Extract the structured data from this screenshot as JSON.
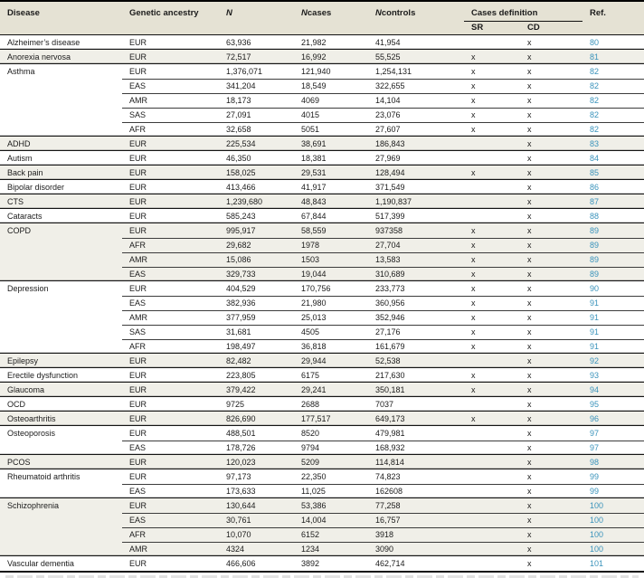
{
  "colors": {
    "header_bg": "#e5e2d4",
    "shaded_row_bg": "#f0efe8",
    "ref_link": "#3a93bb",
    "rule_dark": "#141414"
  },
  "header": {
    "disease": "Disease",
    "ancestry": "Genetic ancestry",
    "n_italic": "N",
    "ncases_prefix": "N",
    "ncases_suffix": "cases",
    "ncontrols_prefix": "N",
    "ncontrols_suffix": "controls",
    "cases_definition": "Cases definition",
    "sr": "SR",
    "cd": "CD",
    "ref": "Ref."
  },
  "groups": [
    {
      "disease": "Alzheimer’s disease",
      "shaded": false,
      "rows": [
        {
          "ancestry": "EUR",
          "n": "63,936",
          "ncases": "21,982",
          "ncontrols": "41,954",
          "sr": "",
          "cd": "x",
          "ref": "80"
        }
      ]
    },
    {
      "disease": "Anorexia nervosa",
      "shaded": true,
      "rows": [
        {
          "ancestry": "EUR",
          "n": "72,517",
          "ncases": "16,992",
          "ncontrols": "55,525",
          "sr": "x",
          "cd": "x",
          "ref": "81"
        }
      ]
    },
    {
      "disease": "Asthma",
      "shaded": false,
      "rows": [
        {
          "ancestry": "EUR",
          "n": "1,376,071",
          "ncases": "121,940",
          "ncontrols": "1,254,131",
          "sr": "x",
          "cd": "x",
          "ref": "82"
        },
        {
          "ancestry": "EAS",
          "n": "341,204",
          "ncases": "18,549",
          "ncontrols": "322,655",
          "sr": "x",
          "cd": "x",
          "ref": "82"
        },
        {
          "ancestry": "AMR",
          "n": "18,173",
          "ncases": "4069",
          "ncontrols": "14,104",
          "sr": "x",
          "cd": "x",
          "ref": "82"
        },
        {
          "ancestry": "SAS",
          "n": "27,091",
          "ncases": "4015",
          "ncontrols": "23,076",
          "sr": "x",
          "cd": "x",
          "ref": "82"
        },
        {
          "ancestry": "AFR",
          "n": "32,658",
          "ncases": "5051",
          "ncontrols": "27,607",
          "sr": "x",
          "cd": "x",
          "ref": "82"
        }
      ]
    },
    {
      "disease": "ADHD",
      "shaded": true,
      "rows": [
        {
          "ancestry": "EUR",
          "n": "225,534",
          "ncases": "38,691",
          "ncontrols": "186,843",
          "sr": "",
          "cd": "x",
          "ref": "83"
        }
      ]
    },
    {
      "disease": "Autism",
      "shaded": false,
      "rows": [
        {
          "ancestry": "EUR",
          "n": "46,350",
          "ncases": "18,381",
          "ncontrols": "27,969",
          "sr": "",
          "cd": "x",
          "ref": "84"
        }
      ]
    },
    {
      "disease": "Back pain",
      "shaded": true,
      "rows": [
        {
          "ancestry": "EUR",
          "n": "158,025",
          "ncases": "29,531",
          "ncontrols": "128,494",
          "sr": "x",
          "cd": "x",
          "ref": "85"
        }
      ]
    },
    {
      "disease": "Bipolar disorder",
      "shaded": false,
      "rows": [
        {
          "ancestry": "EUR",
          "n": "413,466",
          "ncases": "41,917",
          "ncontrols": "371,549",
          "sr": "",
          "cd": "x",
          "ref": "86"
        }
      ]
    },
    {
      "disease": "CTS",
      "shaded": true,
      "rows": [
        {
          "ancestry": "EUR",
          "n": "1,239,680",
          "ncases": "48,843",
          "ncontrols": "1,190,837",
          "sr": "",
          "cd": "x",
          "ref": "87"
        }
      ]
    },
    {
      "disease": "Cataracts",
      "shaded": false,
      "rows": [
        {
          "ancestry": "EUR",
          "n": "585,243",
          "ncases": "67,844",
          "ncontrols": "517,399",
          "sr": "",
          "cd": "x",
          "ref": "88"
        }
      ]
    },
    {
      "disease": "COPD",
      "shaded": true,
      "rows": [
        {
          "ancestry": "EUR",
          "n": "995,917",
          "ncases": "58,559",
          "ncontrols": "937358",
          "sr": "x",
          "cd": "x",
          "ref": "89"
        },
        {
          "ancestry": "AFR",
          "n": "29,682",
          "ncases": "1978",
          "ncontrols": "27,704",
          "sr": "x",
          "cd": "x",
          "ref": "89"
        },
        {
          "ancestry": "AMR",
          "n": "15,086",
          "ncases": "1503",
          "ncontrols": "13,583",
          "sr": "x",
          "cd": "x",
          "ref": "89"
        },
        {
          "ancestry": "EAS",
          "n": "329,733",
          "ncases": "19,044",
          "ncontrols": "310,689",
          "sr": "x",
          "cd": "x",
          "ref": "89"
        }
      ]
    },
    {
      "disease": "Depression",
      "shaded": false,
      "rows": [
        {
          "ancestry": "EUR",
          "n": "404,529",
          "ncases": "170,756",
          "ncontrols": "233,773",
          "sr": "x",
          "cd": "x",
          "ref": "90"
        },
        {
          "ancestry": "EAS",
          "n": "382,936",
          "ncases": "21,980",
          "ncontrols": "360,956",
          "sr": "x",
          "cd": "x",
          "ref": "91"
        },
        {
          "ancestry": "AMR",
          "n": "377,959",
          "ncases": "25,013",
          "ncontrols": "352,946",
          "sr": "x",
          "cd": "x",
          "ref": "91"
        },
        {
          "ancestry": "SAS",
          "n": "31,681",
          "ncases": "4505",
          "ncontrols": "27,176",
          "sr": "x",
          "cd": "x",
          "ref": "91"
        },
        {
          "ancestry": "AFR",
          "n": "198,497",
          "ncases": "36,818",
          "ncontrols": "161,679",
          "sr": "x",
          "cd": "x",
          "ref": "91"
        }
      ]
    },
    {
      "disease": "Epilepsy",
      "shaded": true,
      "rows": [
        {
          "ancestry": "EUR",
          "n": "82,482",
          "ncases": "29,944",
          "ncontrols": "52,538",
          "sr": "",
          "cd": "x",
          "ref": "92"
        }
      ]
    },
    {
      "disease": "Erectile dysfunction",
      "shaded": false,
      "rows": [
        {
          "ancestry": "EUR",
          "n": "223,805",
          "ncases": "6175",
          "ncontrols": "217,630",
          "sr": "x",
          "cd": "x",
          "ref": "93"
        }
      ]
    },
    {
      "disease": "Glaucoma",
      "shaded": true,
      "rows": [
        {
          "ancestry": "EUR",
          "n": "379,422",
          "ncases": "29,241",
          "ncontrols": "350,181",
          "sr": "x",
          "cd": "x",
          "ref": "94"
        }
      ]
    },
    {
      "disease": "OCD",
      "shaded": false,
      "rows": [
        {
          "ancestry": "EUR",
          "n": "9725",
          "ncases": "2688",
          "ncontrols": "7037",
          "sr": "",
          "cd": "x",
          "ref": "95"
        }
      ]
    },
    {
      "disease": "Osteoarthritis",
      "shaded": true,
      "rows": [
        {
          "ancestry": "EUR",
          "n": "826,690",
          "ncases": "177,517",
          "ncontrols": "649,173",
          "sr": "x",
          "cd": "x",
          "ref": "96"
        }
      ]
    },
    {
      "disease": "Osteoporosis",
      "shaded": false,
      "rows": [
        {
          "ancestry": "EUR",
          "n": "488,501",
          "ncases": "8520",
          "ncontrols": "479,981",
          "sr": "",
          "cd": "x",
          "ref": "97"
        },
        {
          "ancestry": "EAS",
          "n": "178,726",
          "ncases": "9794",
          "ncontrols": "168,932",
          "sr": "",
          "cd": "x",
          "ref": "97"
        }
      ]
    },
    {
      "disease": "PCOS",
      "shaded": true,
      "rows": [
        {
          "ancestry": "EUR",
          "n": "120,023",
          "ncases": "5209",
          "ncontrols": "114,814",
          "sr": "",
          "cd": "x",
          "ref": "98"
        }
      ]
    },
    {
      "disease": "Rheumatoid arthritis",
      "shaded": false,
      "rows": [
        {
          "ancestry": "EUR",
          "n": "97,173",
          "ncases": "22,350",
          "ncontrols": "74,823",
          "sr": "",
          "cd": "x",
          "ref": "99"
        },
        {
          "ancestry": "EAS",
          "n": "173,633",
          "ncases": "11,025",
          "ncontrols": "162608",
          "sr": "",
          "cd": "x",
          "ref": "99"
        }
      ]
    },
    {
      "disease": "Schizophrenia",
      "shaded": true,
      "rows": [
        {
          "ancestry": "EUR",
          "n": "130,644",
          "ncases": "53,386",
          "ncontrols": "77,258",
          "sr": "",
          "cd": "x",
          "ref": "100"
        },
        {
          "ancestry": "EAS",
          "n": "30,761",
          "ncases": "14,004",
          "ncontrols": "16,757",
          "sr": "",
          "cd": "x",
          "ref": "100"
        },
        {
          "ancestry": "AFR",
          "n": "10,070",
          "ncases": "6152",
          "ncontrols": "3918",
          "sr": "",
          "cd": "x",
          "ref": "100"
        },
        {
          "ancestry": "AMR",
          "n": "4324",
          "ncases": "1234",
          "ncontrols": "3090",
          "sr": "",
          "cd": "x",
          "ref": "100"
        }
      ]
    },
    {
      "disease": "Vascular dementia",
      "shaded": false,
      "rows": [
        {
          "ancestry": "EUR",
          "n": "466,606",
          "ncases": "3892",
          "ncontrols": "462,714",
          "sr": "",
          "cd": "x",
          "ref": "101"
        }
      ]
    }
  ]
}
